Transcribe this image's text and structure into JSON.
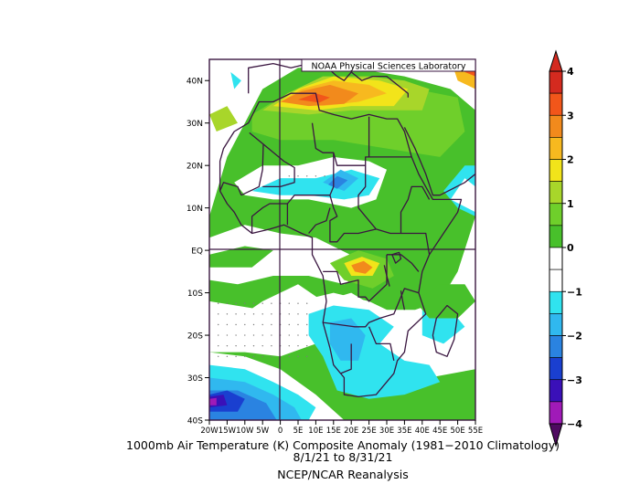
{
  "map": {
    "credit": "NOAA Physical Sciences Laboratory",
    "lat_ticks": [
      "40N",
      "30N",
      "20N",
      "10N",
      "EQ",
      "10S",
      "20S",
      "30S",
      "40S"
    ],
    "lon_ticks": [
      "20W",
      "15W",
      "10W",
      "5W",
      "0",
      "5E",
      "10E",
      "15E",
      "20E",
      "25E",
      "30E",
      "35E",
      "40E",
      "45E",
      "50E",
      "55E"
    ],
    "region": {
      "lon_min": -20,
      "lon_max": 55,
      "lat_min": -40,
      "lat_max": 45
    },
    "grid": true,
    "colors": {
      "ocean_bg": "#ffffff",
      "coast": "#3a1640"
    }
  },
  "colorbar": {
    "labels": [
      "4",
      "3",
      "2",
      "1",
      "0",
      "−1",
      "−2",
      "−3",
      "−4"
    ],
    "levels": [
      4,
      3.5,
      3,
      2.5,
      2,
      1.5,
      1,
      0.5,
      -0.5,
      -1,
      -1.5,
      -2,
      -2.5,
      -3,
      -3.5,
      -4
    ],
    "colors": {
      "p4": "#d42a1f",
      "p35": "#f2561a",
      "p3": "#f28a1c",
      "p25": "#f7b91f",
      "p2": "#f2e41a",
      "p15": "#a8d62a",
      "p1": "#6fcf2b",
      "p05": "#48c02b",
      "zero": "#ffffff",
      "n05": "#30e3ef",
      "n1": "#30b8ef",
      "n15": "#2a83e1",
      "n2": "#1a3fd0",
      "n25": "#3a10b8",
      "n3": "#a01ab8",
      "n35": "#7a1490",
      "n4": "#4e0a60"
    }
  },
  "caption": {
    "line1": "1000mb Air Temperature (K) Composite Anomaly (1981−2010 Climatology)",
    "line2": "8/1/21   to 8/31/21",
    "line3": "NCEP/NCAR Reanalysis"
  }
}
